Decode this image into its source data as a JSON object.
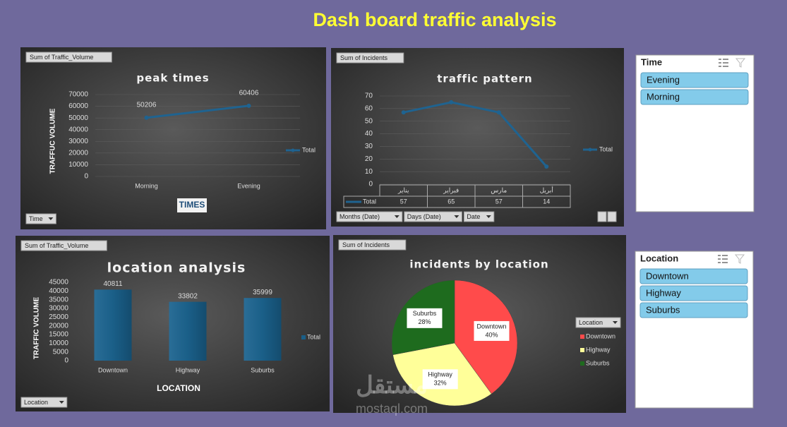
{
  "title": "Dash board traffic analysis",
  "chart_data": [
    {
      "type": "line",
      "field_button": "Sum of Traffic_Volume",
      "title": "peak times",
      "y_label": "TRAFFUC VOLUME",
      "x_label": "TIMES",
      "categories": [
        "Morning",
        "Evening"
      ],
      "series": [
        {
          "name": "Total",
          "color": "#1f6390",
          "values": [
            50206,
            60406
          ]
        }
      ],
      "ylim": [
        0,
        70000
      ],
      "yticks": [
        0,
        10000,
        20000,
        30000,
        40000,
        50000,
        60000,
        70000
      ],
      "grid": true,
      "data_labels": true,
      "legend": "right",
      "filter_buttons": [
        "Time"
      ]
    },
    {
      "type": "line",
      "field_button": "Sum of Incidents",
      "title": "traffic pattern",
      "categories": [
        "يناير",
        "فبراير",
        "مارس",
        "أبريل"
      ],
      "series": [
        {
          "name": "Total",
          "color": "#1f6390",
          "values": [
            57,
            65,
            57,
            14
          ]
        }
      ],
      "ylim": [
        0,
        70
      ],
      "yticks": [
        0,
        10,
        20,
        30,
        40,
        50,
        60,
        70
      ],
      "grid": true,
      "data_table": true,
      "legend": "right",
      "filter_buttons": [
        "Months (Date)",
        "Days (Date)",
        "Date"
      ]
    },
    {
      "type": "bar",
      "field_button": "Sum of Traffic_Volume",
      "title": "location analysis",
      "y_label": "TRAFFIC VOLUME",
      "x_label": "LOCATION",
      "categories": [
        "Downtown",
        "Highway",
        "Suburbs"
      ],
      "series": [
        {
          "name": "Total",
          "color": "#1a5f88",
          "values": [
            40811,
            33802,
            35999
          ]
        }
      ],
      "ylim": [
        0,
        45000
      ],
      "yticks": [
        0,
        5000,
        10000,
        15000,
        20000,
        25000,
        30000,
        35000,
        40000,
        45000
      ],
      "grid": false,
      "data_labels": true,
      "legend": "right",
      "filter_buttons": [
        "Location"
      ]
    },
    {
      "type": "pie",
      "field_button": "Sum of Incidents",
      "title": "incidents by location",
      "categories": [
        "Downtown",
        "Highway",
        "Suburbs"
      ],
      "values": [
        40,
        32,
        28
      ],
      "value_labels": [
        "40%",
        "32%",
        "28%"
      ],
      "colors": [
        "#ff4b4b",
        "#ffff99",
        "#1e6b1e"
      ],
      "legend": "right",
      "legend_title": "Location"
    }
  ],
  "slicers": [
    {
      "title": "Time",
      "items": [
        "Evening",
        "Morning"
      ]
    },
    {
      "title": "Location",
      "items": [
        "Downtown",
        "Highway",
        "Suburbs"
      ]
    }
  ],
  "watermark": [
    "مستقل",
    "mostaql.com"
  ]
}
